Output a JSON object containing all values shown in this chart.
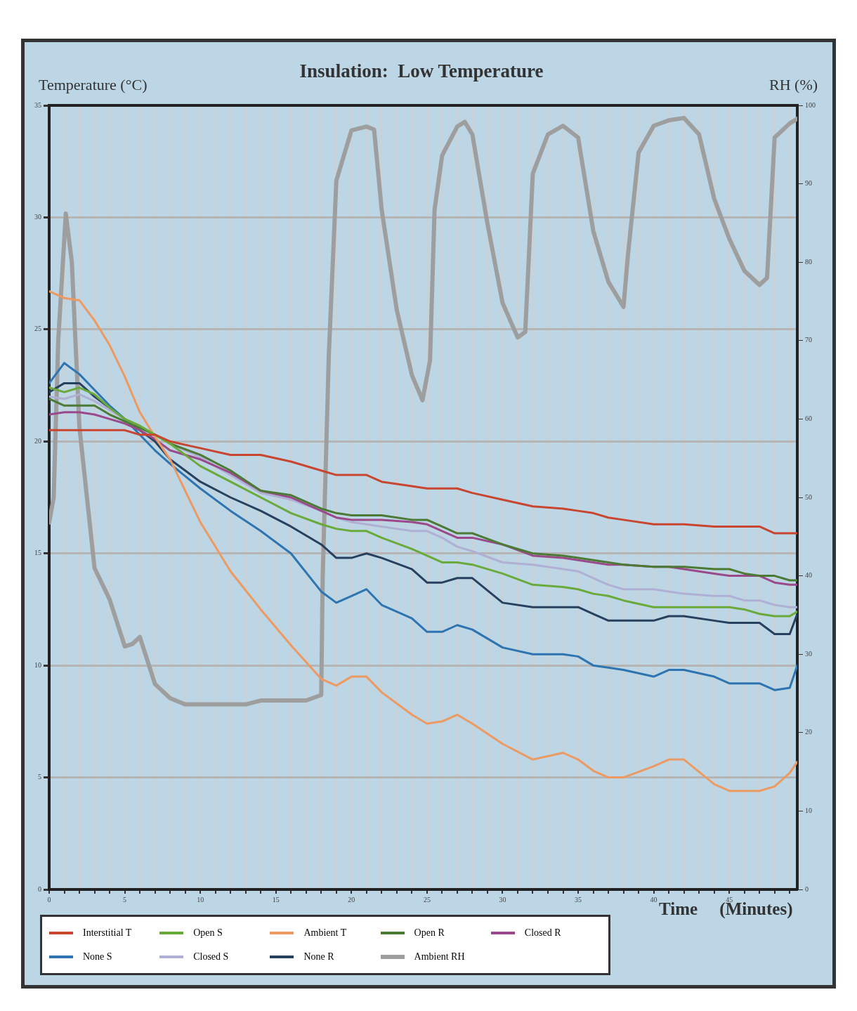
{
  "chart_data": {
    "type": "line",
    "title": "Insulation:  Low Temperature",
    "xlabel": "Time     (Minutes)",
    "ylabel": "Temperature (°C)",
    "y2label": "RH (%)",
    "x": [
      0,
      1,
      2,
      3,
      4,
      5,
      6,
      7,
      8,
      10,
      12,
      14,
      16,
      18,
      19,
      20,
      21,
      22,
      24,
      25,
      26,
      27,
      28,
      30,
      32,
      34,
      35,
      36,
      37,
      38,
      40,
      41,
      42,
      44,
      45,
      46,
      47,
      48,
      49,
      49.5
    ],
    "series": [
      {
        "name": "Interstitial T",
        "color": "#c8452f",
        "values": [
          20.5,
          20.5,
          20.5,
          20.5,
          20.5,
          20.5,
          20.3,
          20.3,
          20.0,
          19.7,
          19.4,
          19.4,
          19.1,
          18.7,
          18.5,
          18.5,
          18.5,
          18.2,
          18.0,
          17.9,
          17.9,
          17.9,
          17.7,
          17.4,
          17.1,
          17.0,
          16.9,
          16.8,
          16.6,
          16.5,
          16.3,
          16.3,
          16.3,
          16.2,
          16.2,
          16.2,
          16.2,
          15.9,
          15.9,
          15.9
        ]
      },
      {
        "name": "Open S",
        "color": "#6aaa3a",
        "values": [
          22.4,
          22.2,
          22.4,
          22.1,
          21.5,
          21.0,
          20.7,
          20.3,
          19.9,
          18.9,
          18.2,
          17.5,
          16.8,
          16.3,
          16.1,
          16.0,
          16.0,
          15.7,
          15.2,
          14.9,
          14.6,
          14.6,
          14.5,
          14.1,
          13.6,
          13.5,
          13.4,
          13.2,
          13.1,
          12.9,
          12.6,
          12.6,
          12.6,
          12.6,
          12.6,
          12.5,
          12.3,
          12.2,
          12.2,
          12.4
        ]
      },
      {
        "name": "Ambient T",
        "color": "#ec9a62",
        "values": [
          26.7,
          26.4,
          26.3,
          25.4,
          24.3,
          22.9,
          21.3,
          20.2,
          19.2,
          16.4,
          14.2,
          12.5,
          10.9,
          9.4,
          9.1,
          9.5,
          9.5,
          8.8,
          7.8,
          7.4,
          7.5,
          7.8,
          7.4,
          6.5,
          5.8,
          6.1,
          5.8,
          5.3,
          5.0,
          5.0,
          5.5,
          5.8,
          5.8,
          4.7,
          4.4,
          4.4,
          4.4,
          4.6,
          5.2,
          5.7
        ]
      },
      {
        "name": "Open R",
        "color": "#4a7a33",
        "values": [
          21.9,
          21.6,
          21.6,
          21.6,
          21.2,
          20.9,
          20.6,
          20.3,
          19.9,
          19.4,
          18.7,
          17.8,
          17.6,
          17.0,
          16.8,
          16.7,
          16.7,
          16.7,
          16.5,
          16.5,
          16.2,
          15.9,
          15.9,
          15.4,
          15.0,
          14.9,
          14.8,
          14.7,
          14.6,
          14.5,
          14.4,
          14.4,
          14.4,
          14.3,
          14.3,
          14.1,
          14.0,
          14.0,
          13.8,
          13.8
        ]
      },
      {
        "name": "Closed R",
        "color": "#9a4a8a",
        "values": [
          21.2,
          21.3,
          21.3,
          21.2,
          21.0,
          20.8,
          20.5,
          20.1,
          19.6,
          19.2,
          18.6,
          17.8,
          17.5,
          16.9,
          16.6,
          16.5,
          16.5,
          16.5,
          16.4,
          16.3,
          16.0,
          15.7,
          15.7,
          15.4,
          14.9,
          14.8,
          14.7,
          14.6,
          14.5,
          14.5,
          14.4,
          14.4,
          14.3,
          14.1,
          14.0,
          14.0,
          14.0,
          13.7,
          13.6,
          13.6
        ]
      },
      {
        "name": "None S",
        "color": "#2e74b0",
        "values": [
          22.6,
          23.5,
          23.0,
          22.3,
          21.6,
          21.0,
          20.3,
          19.6,
          19.0,
          17.9,
          16.9,
          16.0,
          15.0,
          13.3,
          12.8,
          13.1,
          13.4,
          12.7,
          12.1,
          11.5,
          11.5,
          11.8,
          11.6,
          10.8,
          10.5,
          10.5,
          10.4,
          10.0,
          9.9,
          9.8,
          9.5,
          9.8,
          9.8,
          9.5,
          9.2,
          9.2,
          9.2,
          8.9,
          9.0,
          10.0
        ]
      },
      {
        "name": "Closed S",
        "color": "#b0b0d4",
        "values": [
          22.0,
          21.9,
          22.1,
          21.8,
          21.4,
          21.0,
          20.6,
          20.3,
          19.9,
          19.3,
          18.5,
          17.7,
          17.4,
          16.9,
          16.6,
          16.4,
          16.3,
          16.2,
          16.0,
          16.0,
          15.7,
          15.3,
          15.1,
          14.6,
          14.5,
          14.3,
          14.2,
          13.9,
          13.6,
          13.4,
          13.4,
          13.3,
          13.2,
          13.1,
          13.1,
          12.9,
          12.9,
          12.7,
          12.6,
          12.6
        ]
      },
      {
        "name": "None R",
        "color": "#27405e",
        "values": [
          22.2,
          22.6,
          22.6,
          22.0,
          21.5,
          21.0,
          20.5,
          20.0,
          19.2,
          18.2,
          17.5,
          16.9,
          16.2,
          15.4,
          14.8,
          14.8,
          15.0,
          14.8,
          14.3,
          13.7,
          13.7,
          13.9,
          13.9,
          12.8,
          12.6,
          12.6,
          12.6,
          12.3,
          12.0,
          12.0,
          12.0,
          12.2,
          12.2,
          12.0,
          11.9,
          11.9,
          11.9,
          11.4,
          11.4,
          12.3
        ]
      },
      {
        "name": "Ambient RH",
        "color": "#9e9e9e",
        "axis": "y2",
        "x": [
          0,
          0.3,
          0.6,
          1.1,
          1.5,
          2,
          3,
          4,
          5,
          5.5,
          6,
          7,
          8,
          9,
          13,
          14,
          17,
          18,
          18.1,
          18.5,
          19,
          20,
          21,
          21.5,
          22,
          23,
          24,
          24.7,
          25.2,
          25.5,
          26,
          27,
          27.5,
          28,
          29,
          30,
          31,
          31.5,
          32,
          33,
          34,
          35,
          36,
          37,
          38,
          38.3,
          39,
          40,
          41,
          42,
          43,
          44,
          45,
          46,
          47,
          47.5,
          48,
          49,
          49.5
        ],
        "values": [
          46.8,
          50,
          70,
          86.2,
          80,
          59,
          41,
          37,
          31,
          31.3,
          32.2,
          26.2,
          24.4,
          23.6,
          23.6,
          24.1,
          24.1,
          24.8,
          40,
          68,
          90.4,
          96.8,
          97.3,
          96.9,
          86.7,
          73.9,
          65.6,
          62.4,
          67.5,
          86.7,
          93.6,
          97.3,
          97.9,
          96.3,
          84.9,
          74.8,
          70.4,
          71.1,
          91.3,
          96.3,
          97.4,
          95.9,
          84.0,
          77.5,
          74.3,
          81,
          94,
          97.4,
          98.1,
          98.4,
          96.3,
          88.1,
          83,
          78.9,
          77.1,
          78,
          95.9,
          97.7,
          98.3
        ]
      }
    ],
    "xlim": [
      0,
      49.5
    ],
    "xticks": [
      0,
      {
        "value": 1,
        "label": null
      },
      {
        "value": 2,
        "label": null
      },
      {
        "value": 3,
        "label": null
      },
      {
        "value": 4,
        "label": null
      },
      5,
      {
        "value": 6,
        "label": null
      },
      {
        "value": 7,
        "label": null
      },
      {
        "value": 8,
        "label": null
      },
      {
        "value": 9,
        "label": null
      },
      10,
      {
        "value": 11,
        "label": null
      },
      {
        "value": 12,
        "label": null
      },
      {
        "value": 13,
        "label": null
      },
      {
        "value": 14,
        "label": null
      },
      15,
      {
        "value": 16,
        "label": null
      },
      {
        "value": 17,
        "label": null
      },
      {
        "value": 18,
        "label": null
      },
      {
        "value": 19,
        "label": null
      },
      20,
      {
        "value": 21,
        "label": null
      },
      {
        "value": 22,
        "label": null
      },
      {
        "value": 23,
        "label": null
      },
      {
        "value": 24,
        "label": null
      },
      25,
      {
        "value": 26,
        "label": null
      },
      {
        "value": 27,
        "label": null
      },
      {
        "value": 28,
        "label": null
      },
      {
        "value": 29,
        "label": null
      },
      30,
      {
        "value": 31,
        "label": null
      },
      {
        "value": 32,
        "label": null
      },
      {
        "value": 33,
        "label": null
      },
      {
        "value": 34,
        "label": null
      },
      35,
      {
        "value": 36,
        "label": null
      },
      {
        "value": 37,
        "label": null
      },
      {
        "value": 38,
        "label": null
      },
      {
        "value": 39,
        "label": null
      },
      40,
      {
        "value": 41,
        "label": null
      },
      {
        "value": 42,
        "label": null
      },
      {
        "value": 43,
        "label": null
      },
      {
        "value": 44,
        "label": null
      },
      45,
      {
        "value": 46,
        "label": null
      },
      {
        "value": 47,
        "label": null
      },
      {
        "value": 48,
        "label": null
      },
      {
        "value": 49,
        "label": null
      }
    ],
    "ylim": [
      0,
      35
    ],
    "yticks": [
      0,
      5,
      10,
      15,
      20,
      25,
      30,
      35
    ],
    "y2lim": [
      0,
      100
    ],
    "y2ticks": [
      0,
      10,
      20,
      30,
      40,
      50,
      60,
      70,
      80,
      90,
      100
    ],
    "grid": true,
    "legend": "bottom",
    "marker": "none",
    "line_style": "solid"
  }
}
